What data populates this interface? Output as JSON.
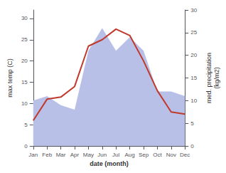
{
  "chart_data": {
    "type": "line",
    "categories": [
      "Jan",
      "Feb",
      "Mar",
      "Apr",
      "May",
      "Jun",
      "Jul",
      "Aug",
      "Sep",
      "Oct",
      "Nov",
      "Dec"
    ],
    "xlabel": "date (month)",
    "ylabel": "max temp (C)",
    "y2label": "med. precipitation\n(kg/m2)",
    "ylim": [
      0,
      32
    ],
    "yticks": [
      0,
      5,
      10,
      15,
      20,
      25,
      30
    ],
    "y2lim": [
      0,
      30
    ],
    "y2ticks": [
      0,
      5,
      10,
      15,
      20,
      25,
      30
    ],
    "grid": false,
    "series": [
      {
        "type": "area",
        "axis": "y2",
        "color": "#b8c0e8",
        "values": [
          10,
          11,
          9,
          8,
          21,
          26,
          21,
          24,
          21,
          12,
          12,
          11
        ]
      },
      {
        "type": "line",
        "color": "#c0392b",
        "values": [
          6,
          11,
          11.5,
          14,
          23.5,
          25,
          27.5,
          26,
          20,
          13,
          8,
          7.5
        ]
      }
    ]
  }
}
